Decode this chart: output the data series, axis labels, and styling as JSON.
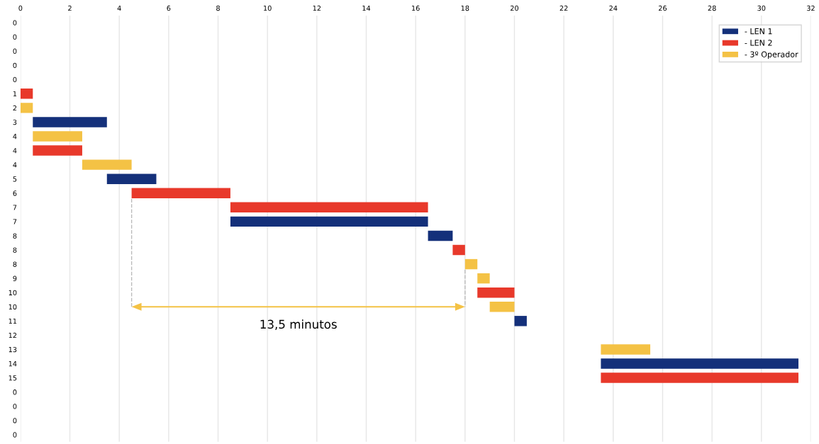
{
  "chart_data": {
    "type": "bar",
    "orientation": "horizontal",
    "categories": [
      "0",
      "0",
      "0",
      "0",
      "0",
      "1",
      "2",
      "3",
      "4",
      "4",
      "4",
      "5",
      "6",
      "7",
      "7",
      "8",
      "8",
      "8",
      "9",
      "10",
      "10",
      "11",
      "12",
      "13",
      "14",
      "15",
      "0",
      "0",
      "0",
      "0"
    ],
    "series": [
      {
        "name": "- LEN 1",
        "color": "#14307a",
        "base": [
          null,
          null,
          null,
          null,
          null,
          null,
          null,
          0.5,
          null,
          null,
          null,
          3.5,
          null,
          null,
          8.5,
          16.5,
          null,
          null,
          null,
          null,
          null,
          20,
          null,
          null,
          23.5,
          null,
          null,
          null,
          null,
          null
        ],
        "values": [
          null,
          null,
          null,
          null,
          null,
          null,
          null,
          3,
          null,
          null,
          null,
          2,
          null,
          null,
          8,
          1,
          null,
          null,
          null,
          null,
          null,
          0.5,
          null,
          null,
          8,
          null,
          null,
          null,
          null,
          null
        ]
      },
      {
        "name": "- LEN 2",
        "color": "#e8392b",
        "base": [
          null,
          null,
          null,
          null,
          null,
          0,
          null,
          null,
          null,
          0.5,
          null,
          null,
          4.5,
          8.5,
          null,
          null,
          17.5,
          null,
          null,
          18.5,
          null,
          null,
          null,
          null,
          null,
          23.5,
          null,
          null,
          null,
          null
        ],
        "values": [
          null,
          null,
          null,
          null,
          null,
          0.5,
          null,
          null,
          null,
          2,
          null,
          null,
          4,
          8,
          null,
          null,
          0.5,
          null,
          null,
          1.5,
          null,
          null,
          null,
          null,
          null,
          8,
          null,
          null,
          null,
          null
        ]
      },
      {
        "name": "- 3º Operador",
        "color": "#f4c245",
        "base": [
          null,
          null,
          null,
          null,
          null,
          null,
          0,
          null,
          0.5,
          null,
          2.5,
          null,
          null,
          null,
          null,
          null,
          null,
          18,
          18.5,
          null,
          19,
          null,
          null,
          23.5,
          null,
          null,
          null,
          null,
          null,
          null
        ],
        "values": [
          null,
          null,
          null,
          null,
          null,
          null,
          0.5,
          null,
          2,
          null,
          2,
          null,
          null,
          null,
          null,
          null,
          null,
          0.5,
          0.5,
          null,
          1,
          null,
          null,
          2,
          null,
          null,
          null,
          null,
          null,
          null
        ]
      }
    ],
    "xlim": [
      0,
      32
    ],
    "xticks": [
      0,
      2,
      4,
      6,
      8,
      10,
      12,
      14,
      16,
      18,
      20,
      22,
      24,
      26,
      28,
      30,
      32
    ],
    "grid": "x",
    "legend": "top right",
    "ref_lines": [
      {
        "axis": "x",
        "value": 4.5,
        "label": null,
        "color": "#bbbbbb",
        "line_style": "dashed"
      },
      {
        "axis": "x",
        "value": 18,
        "label": null,
        "color": "#bbbbbb",
        "line_style": "dashed"
      }
    ],
    "annotations": [
      "13,5 minutos"
    ]
  }
}
